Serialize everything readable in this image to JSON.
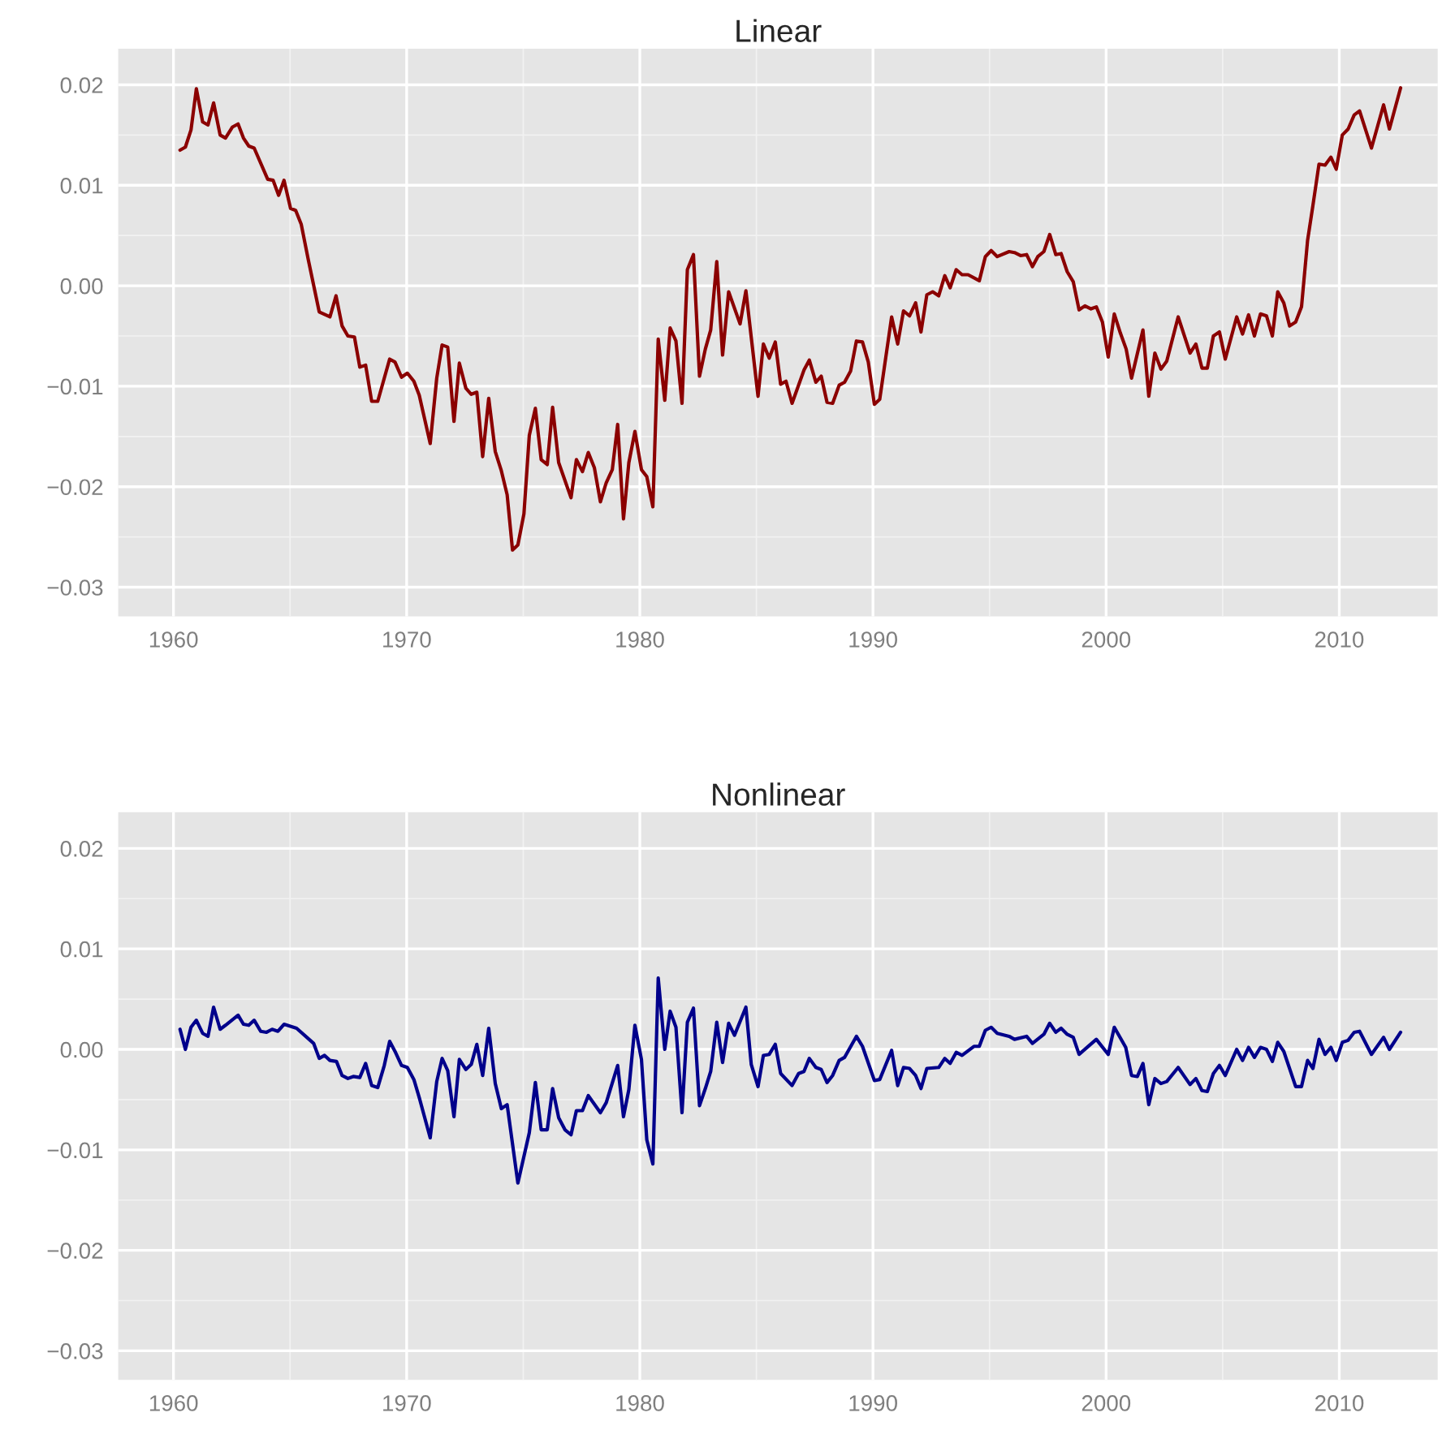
{
  "chart_data": [
    {
      "type": "line",
      "title": "Linear",
      "xlim": [
        1957.63,
        2014.22
      ],
      "ylim": [
        -0.0329,
        0.0236
      ],
      "xticks": [
        1960,
        1970,
        1980,
        1990,
        2000,
        2010
      ],
      "yticks": [
        {
          "value": -0.03,
          "label": "−0.03"
        },
        {
          "value": -0.02,
          "label": "−0.02"
        },
        {
          "value": -0.01,
          "label": "−0.01"
        },
        {
          "value": 0.0,
          "label": "0.00"
        },
        {
          "value": 0.01,
          "label": "0.01"
        },
        {
          "value": 0.02,
          "label": "0.02"
        }
      ],
      "grid": true,
      "series": [
        {
          "color": "#8b0000",
          "x": [
            1960.28,
            1960.51,
            1960.75,
            1960.98,
            1961.25,
            1961.48,
            1961.72,
            1962.0,
            1962.23,
            1962.53,
            1962.77,
            1963.0,
            1963.23,
            1963.46,
            1964.04,
            1964.27,
            1964.51,
            1964.74,
            1965.02,
            1965.24,
            1965.48,
            1965.78,
            1966.25,
            1966.71,
            1966.97,
            1967.23,
            1967.48,
            1967.76,
            1967.99,
            1968.24,
            1968.5,
            1968.76,
            1969.27,
            1969.5,
            1969.78,
            1970.03,
            1970.31,
            1970.54,
            1971.01,
            1971.29,
            1971.52,
            1971.76,
            1972.03,
            1972.26,
            1972.54,
            1972.77,
            1973.01,
            1973.26,
            1973.52,
            1973.8,
            1974.06,
            1974.31,
            1974.54,
            1974.77,
            1975.03,
            1975.26,
            1975.52,
            1975.77,
            1976.03,
            1976.26,
            1976.52,
            1977.05,
            1977.28,
            1977.54,
            1977.79,
            1978.05,
            1978.31,
            1978.56,
            1978.82,
            1979.05,
            1979.3,
            1979.53,
            1979.79,
            1980.07,
            1980.3,
            1980.56,
            1980.79,
            1981.07,
            1981.3,
            1981.55,
            1981.81,
            1982.04,
            1982.3,
            1982.56,
            1982.81,
            1983.04,
            1983.3,
            1983.55,
            1983.81,
            1984.3,
            1984.55,
            1985.07,
            1985.3,
            1985.55,
            1985.81,
            1986.04,
            1986.27,
            1986.53,
            1987.04,
            1987.27,
            1987.55,
            1987.78,
            1988.03,
            1988.27,
            1988.55,
            1988.78,
            1989.04,
            1989.29,
            1989.55,
            1989.8,
            1990.06,
            1990.29,
            1990.8,
            1991.06,
            1991.31,
            1991.57,
            1991.83,
            1992.06,
            1992.31,
            1992.56,
            1992.82,
            1993.08,
            1993.31,
            1993.57,
            1993.82,
            1994.08,
            1994.56,
            1994.82,
            1995.07,
            1995.33,
            1995.84,
            1996.07,
            1996.33,
            1996.59,
            1996.84,
            1997.07,
            1997.33,
            1997.58,
            1997.84,
            1998.07,
            1998.33,
            1998.59,
            1998.84,
            1999.09,
            1999.35,
            1999.58,
            1999.84,
            2000.09,
            2000.35,
            2000.61,
            2000.86,
            2001.09,
            2001.58,
            2001.83,
            2002.09,
            2002.35,
            2002.6,
            2003.09,
            2003.6,
            2003.85,
            2004.11,
            2004.34,
            2004.6,
            2004.86,
            2005.11,
            2005.6,
            2005.85,
            2006.11,
            2006.36,
            2006.62,
            2006.88,
            2007.13,
            2007.36,
            2007.62,
            2007.87,
            2008.13,
            2008.38,
            2008.64,
            2008.87,
            2009.13,
            2009.39,
            2009.64,
            2009.87,
            2010.13,
            2010.38,
            2010.64,
            2010.87,
            2011.38,
            2011.9,
            2012.15,
            2012.63
          ],
          "values": [
            0.0135,
            0.0138,
            0.0155,
            0.0196,
            0.0163,
            0.016,
            0.0182,
            0.015,
            0.0147,
            0.0158,
            0.0161,
            0.0147,
            0.0139,
            0.0137,
            0.0106,
            0.0105,
            0.009,
            0.0105,
            0.0077,
            0.0075,
            0.0061,
            0.0026,
            -0.0026,
            -0.0031,
            -0.001,
            -0.004,
            -0.005,
            -0.0051,
            -0.0081,
            -0.0079,
            -0.0115,
            -0.0115,
            -0.0073,
            -0.0076,
            -0.0091,
            -0.0087,
            -0.0095,
            -0.0109,
            -0.0157,
            -0.0092,
            -0.0059,
            -0.0061,
            -0.0135,
            -0.0077,
            -0.0102,
            -0.0108,
            -0.0106,
            -0.017,
            -0.0112,
            -0.0165,
            -0.0184,
            -0.0208,
            -0.0263,
            -0.0258,
            -0.0227,
            -0.0149,
            -0.0122,
            -0.0173,
            -0.0178,
            -0.0121,
            -0.0176,
            -0.0211,
            -0.0173,
            -0.0185,
            -0.0166,
            -0.0181,
            -0.0215,
            -0.0196,
            -0.0183,
            -0.0138,
            -0.0232,
            -0.0176,
            -0.0145,
            -0.0183,
            -0.019,
            -0.022,
            -0.0053,
            -0.0114,
            -0.0042,
            -0.0055,
            -0.0117,
            0.0016,
            0.0031,
            -0.009,
            -0.0063,
            -0.0044,
            0.0024,
            -0.0069,
            -0.0006,
            -0.0038,
            -0.0005,
            -0.011,
            -0.0058,
            -0.0072,
            -0.0056,
            -0.0098,
            -0.0095,
            -0.0117,
            -0.0084,
            -0.0074,
            -0.0096,
            -0.009,
            -0.0116,
            -0.0117,
            -0.0099,
            -0.0096,
            -0.0085,
            -0.0055,
            -0.0056,
            -0.0076,
            -0.0118,
            -0.0113,
            -0.0031,
            -0.0058,
            -0.0025,
            -0.003,
            -0.0017,
            -0.0046,
            -0.0009,
            -0.0006,
            -0.001,
            0.001,
            -0.0002,
            0.0016,
            0.0011,
            0.0011,
            0.0005,
            0.0029,
            0.0035,
            0.0029,
            0.0034,
            0.0033,
            0.003,
            0.0031,
            0.0019,
            0.0029,
            0.0034,
            0.0051,
            0.0031,
            0.0032,
            0.0014,
            0.0004,
            -0.0024,
            -0.002,
            -0.0023,
            -0.0021,
            -0.0036,
            -0.0071,
            -0.0028,
            -0.0047,
            -0.0063,
            -0.0092,
            -0.0044,
            -0.011,
            -0.0067,
            -0.0083,
            -0.0075,
            -0.0031,
            -0.0067,
            -0.0058,
            -0.0082,
            -0.0082,
            -0.005,
            -0.0046,
            -0.0073,
            -0.0031,
            -0.0048,
            -0.0029,
            -0.005,
            -0.0028,
            -0.003,
            -0.005,
            -0.0006,
            -0.0017,
            -0.004,
            -0.0036,
            -0.0021,
            0.0045,
            0.008,
            0.0121,
            0.012,
            0.0128,
            0.0116,
            0.015,
            0.0156,
            0.017,
            0.0174,
            0.0137,
            0.018,
            0.0156,
            0.0197
          ]
        }
      ]
    },
    {
      "type": "line",
      "title": "Nonlinear",
      "xlim": [
        1957.63,
        2014.22
      ],
      "ylim": [
        -0.0329,
        0.0236
      ],
      "xticks": [
        1960,
        1970,
        1980,
        1990,
        2000,
        2010
      ],
      "yticks": [
        {
          "value": -0.03,
          "label": "−0.03"
        },
        {
          "value": -0.02,
          "label": "−0.02"
        },
        {
          "value": -0.01,
          "label": "−0.01"
        },
        {
          "value": 0.0,
          "label": "0.00"
        },
        {
          "value": 0.01,
          "label": "0.01"
        },
        {
          "value": 0.02,
          "label": "0.02"
        }
      ],
      "grid": true,
      "series": [
        {
          "color": "#00008b",
          "x": [
            1960.28,
            1960.51,
            1960.75,
            1960.98,
            1961.25,
            1961.48,
            1961.72,
            1962.0,
            1962.23,
            1962.77,
            1963.0,
            1963.23,
            1963.46,
            1963.74,
            1963.99,
            1964.23,
            1964.48,
            1964.74,
            1965.28,
            1966.01,
            1966.25,
            1966.48,
            1966.71,
            1966.99,
            1967.23,
            1967.48,
            1967.71,
            1967.99,
            1968.24,
            1968.5,
            1968.76,
            1969.04,
            1969.27,
            1969.5,
            1969.78,
            1970.03,
            1970.31,
            1970.54,
            1971.01,
            1971.29,
            1971.52,
            1971.76,
            1972.03,
            1972.26,
            1972.54,
            1972.77,
            1973.01,
            1973.26,
            1973.52,
            1973.8,
            1974.06,
            1974.31,
            1974.77,
            1975.26,
            1975.52,
            1975.77,
            1976.03,
            1976.26,
            1976.52,
            1976.79,
            1977.05,
            1977.28,
            1977.54,
            1977.79,
            1978.31,
            1978.56,
            1979.05,
            1979.3,
            1979.53,
            1979.79,
            1980.07,
            1980.3,
            1980.56,
            1980.79,
            1981.07,
            1981.3,
            1981.55,
            1981.81,
            1982.04,
            1982.3,
            1982.56,
            1982.81,
            1983.04,
            1983.3,
            1983.55,
            1983.81,
            1984.06,
            1984.55,
            1984.78,
            1985.07,
            1985.3,
            1985.55,
            1985.81,
            1986.04,
            1986.53,
            1986.81,
            1987.04,
            1987.27,
            1987.55,
            1987.78,
            1988.03,
            1988.27,
            1988.55,
            1988.78,
            1989.29,
            1989.55,
            1990.06,
            1990.29,
            1990.8,
            1991.06,
            1991.31,
            1991.57,
            1991.83,
            1992.06,
            1992.31,
            1992.82,
            1993.08,
            1993.31,
            1993.57,
            1993.82,
            1994.33,
            1994.56,
            1994.82,
            1995.07,
            1995.33,
            1995.84,
            1996.07,
            1996.59,
            1996.84,
            1997.33,
            1997.58,
            1997.84,
            1998.07,
            1998.33,
            1998.59,
            1998.84,
            1999.58,
            2000.09,
            2000.35,
            2000.84,
            2001.09,
            2001.34,
            2001.58,
            2001.83,
            2002.09,
            2002.35,
            2002.6,
            2003.09,
            2003.6,
            2003.85,
            2004.11,
            2004.34,
            2004.6,
            2004.86,
            2005.11,
            2005.6,
            2005.85,
            2006.11,
            2006.36,
            2006.62,
            2006.88,
            2007.13,
            2007.36,
            2007.62,
            2008.13,
            2008.38,
            2008.64,
            2008.87,
            2009.13,
            2009.39,
            2009.64,
            2009.87,
            2010.13,
            2010.38,
            2010.64,
            2010.87,
            2011.38,
            2011.9,
            2012.15,
            2012.63
          ],
          "values": [
            0.002,
            0.0,
            0.0022,
            0.0029,
            0.0016,
            0.0013,
            0.0042,
            0.002,
            0.0024,
            0.0034,
            0.0025,
            0.0024,
            0.0029,
            0.0018,
            0.0017,
            0.002,
            0.0018,
            0.0025,
            0.0021,
            0.0006,
            -0.0009,
            -0.0006,
            -0.0011,
            -0.0012,
            -0.0026,
            -0.0029,
            -0.0027,
            -0.0028,
            -0.0014,
            -0.0036,
            -0.0038,
            -0.0016,
            0.0008,
            -0.0002,
            -0.0016,
            -0.0018,
            -0.003,
            -0.0048,
            -0.0088,
            -0.0032,
            -0.0009,
            -0.0021,
            -0.0067,
            -0.001,
            -0.002,
            -0.0015,
            0.0005,
            -0.0026,
            0.0021,
            -0.0034,
            -0.0059,
            -0.0055,
            -0.0133,
            -0.0083,
            -0.0033,
            -0.008,
            -0.008,
            -0.0039,
            -0.0068,
            -0.008,
            -0.0085,
            -0.0061,
            -0.0061,
            -0.0046,
            -0.0063,
            -0.0053,
            -0.0016,
            -0.0067,
            -0.004,
            0.0024,
            -0.001,
            -0.009,
            -0.0114,
            0.0071,
            0.0,
            0.0038,
            0.0022,
            -0.0063,
            0.0027,
            0.0041,
            -0.0056,
            -0.0039,
            -0.0022,
            0.0027,
            -0.0013,
            0.0026,
            0.0014,
            0.0042,
            -0.0015,
            -0.0037,
            -0.0006,
            -0.0005,
            0.0005,
            -0.0024,
            -0.0036,
            -0.0024,
            -0.0022,
            -0.0009,
            -0.0018,
            -0.002,
            -0.0033,
            -0.0026,
            -0.0011,
            -0.0008,
            0.0013,
            0.0003,
            -0.0031,
            -0.003,
            -0.0001,
            -0.0036,
            -0.0018,
            -0.0019,
            -0.0026,
            -0.0039,
            -0.0019,
            -0.0018,
            -0.0009,
            -0.0014,
            -0.0003,
            -0.0006,
            0.0003,
            0.0003,
            0.0019,
            0.0022,
            0.0016,
            0.0013,
            0.001,
            0.0013,
            0.0006,
            0.0015,
            0.0026,
            0.0017,
            0.0021,
            0.0015,
            0.0012,
            -0.0005,
            0.001,
            -0.0005,
            0.0022,
            0.0002,
            -0.0026,
            -0.0027,
            -0.0014,
            -0.0055,
            -0.0029,
            -0.0034,
            -0.0032,
            -0.0018,
            -0.0035,
            -0.0029,
            -0.0041,
            -0.0042,
            -0.0024,
            -0.0016,
            -0.0026,
            0.0,
            -0.0011,
            0.0002,
            -0.0008,
            0.0002,
            0.0,
            -0.0012,
            0.0007,
            -0.0002,
            -0.0037,
            -0.0037,
            -0.0011,
            -0.0019,
            0.001,
            -0.0005,
            0.0002,
            -0.0011,
            0.0007,
            0.0009,
            0.0017,
            0.0018,
            -0.0005,
            0.0012,
            0.0,
            0.0017
          ]
        }
      ]
    }
  ]
}
